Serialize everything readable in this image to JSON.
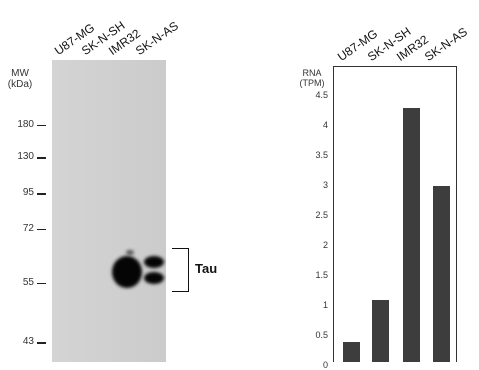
{
  "western_blot": {
    "mw_title_line1": "MW",
    "mw_title_line2": "(kDa)",
    "lanes": [
      "U87-MG",
      "SK-N-SH",
      "IMR32",
      "SK-N-AS"
    ],
    "markers": [
      {
        "label": "180",
        "pos": 0.215
      },
      {
        "label": "130",
        "pos": 0.322
      },
      {
        "label": "95",
        "pos": 0.442
      },
      {
        "label": "72",
        "pos": 0.558
      },
      {
        "label": "55",
        "pos": 0.738
      },
      {
        "label": "43",
        "pos": 0.935
      }
    ],
    "target_label": "Tau"
  },
  "chart_data": {
    "type": "bar",
    "title": "RNA (TPM)",
    "title_line1": "RNA",
    "title_line2": "(TPM)",
    "categories": [
      "U87-MG",
      "SK-N-SH",
      "IMR32",
      "SK-N-AS"
    ],
    "values": [
      0.4,
      1.1,
      4.3,
      3.0
    ],
    "ylim": [
      0,
      4.5
    ],
    "yticks": [
      "0",
      "0.5",
      "1",
      "1.5",
      "2",
      "2.5",
      "3",
      "3.5",
      "4",
      "4.5"
    ],
    "bar_color": "#3d3d3d"
  }
}
